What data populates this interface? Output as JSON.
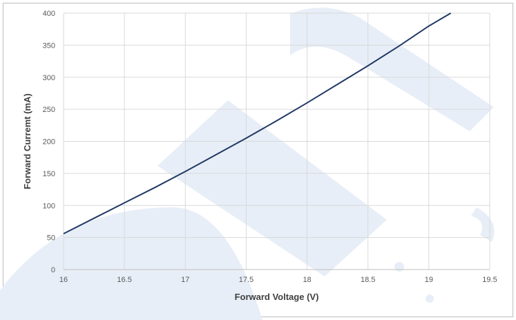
{
  "chart_data": {
    "type": "line",
    "title": "",
    "xlabel": "Forward Voltage (V)",
    "ylabel": "Forward Curremt (mA)",
    "xlim": [
      16,
      19.5
    ],
    "ylim": [
      0,
      400
    ],
    "xticks": [
      "16",
      "16.5",
      "17",
      "17.5",
      "18",
      "18.5",
      "19",
      "19.5"
    ],
    "yticks": [
      "0",
      "50",
      "100",
      "150",
      "200",
      "250",
      "300",
      "350",
      "400"
    ],
    "grid": true,
    "legend": "none",
    "series": [
      {
        "color": "#1f3864",
        "x": [
          16,
          16.25,
          16.5,
          16.75,
          17,
          17.25,
          17.5,
          17.75,
          18,
          18.25,
          18.5,
          18.75,
          19,
          19.18
        ],
        "y": [
          56,
          80,
          104,
          128,
          153,
          179,
          205,
          232,
          260,
          289,
          318,
          348,
          380,
          400
        ]
      }
    ]
  },
  "watermark": {
    "color": "#e8eef7"
  }
}
